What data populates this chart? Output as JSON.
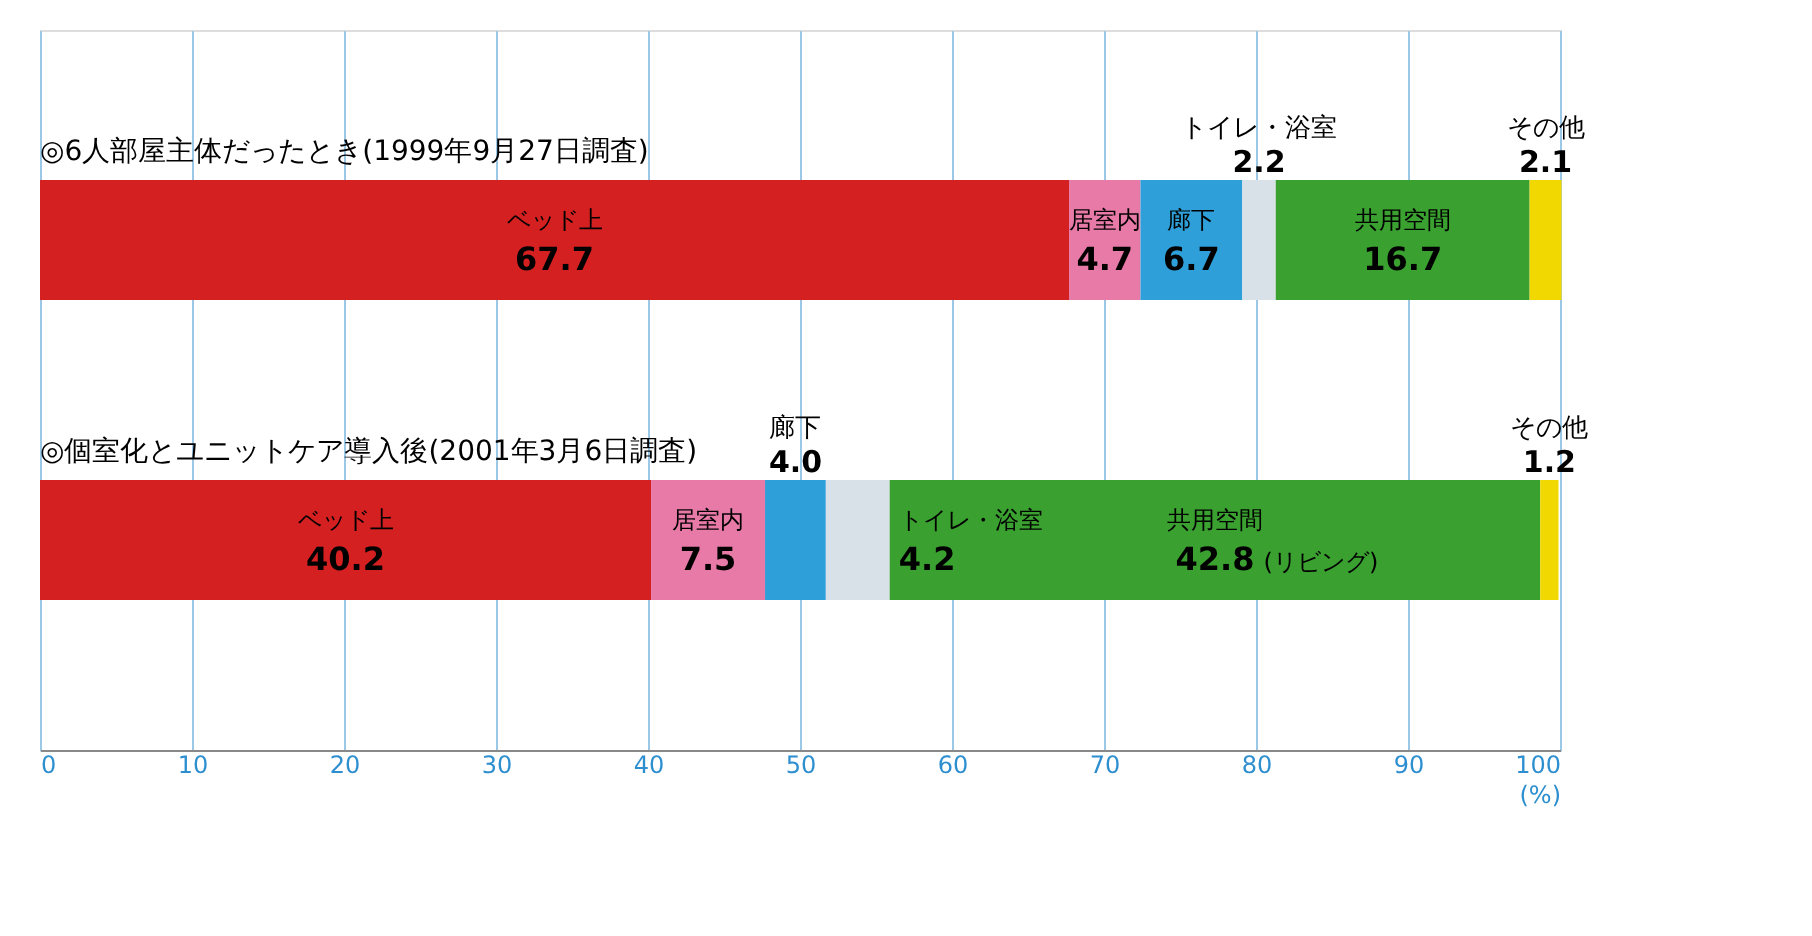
{
  "chart_data": {
    "type": "bar",
    "orientation": "horizontal",
    "stacked": true,
    "data_labels": true,
    "legend": false,
    "grid": "x",
    "categories": [
      "◎6人部屋主体だったとき(1999年9月27日調査)",
      "◎個室化とユニットケア導入後(2001年3月6日調査)"
    ],
    "series": [
      {
        "name": "ベッド上",
        "color": "#d42020",
        "values": [
          67.7,
          40.2
        ]
      },
      {
        "name": "居室内",
        "color": "#e87aa8",
        "values": [
          4.7,
          7.5
        ]
      },
      {
        "name": "廊下",
        "color": "#2e9fd8",
        "values": [
          6.7,
          4.0
        ],
        "value_labels": [
          "6.7",
          "4.0"
        ]
      },
      {
        "name": "トイレ・浴室",
        "color": "#d8e0e8",
        "values": [
          2.2,
          4.2
        ]
      },
      {
        "name": "共用空間",
        "color": "#3aa030",
        "values": [
          16.7,
          42.8
        ]
      },
      {
        "name": "その他",
        "color": "#f0d800",
        "values": [
          2.1,
          1.2
        ]
      }
    ],
    "xlim": [
      0,
      100
    ],
    "xticks": [
      0,
      10,
      20,
      30,
      40,
      50,
      60,
      70,
      80,
      90,
      100
    ],
    "xlabel": "(%)",
    "annotations": [
      "(リビング)"
    ]
  }
}
